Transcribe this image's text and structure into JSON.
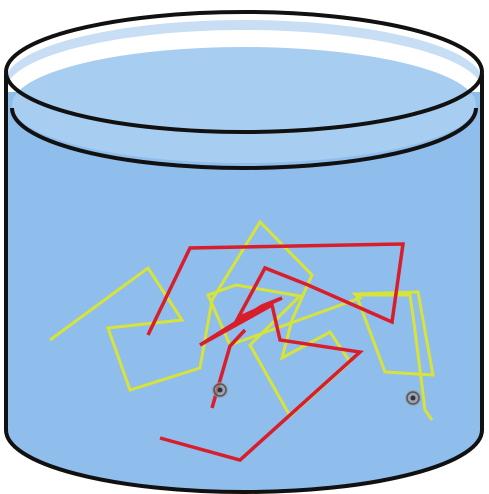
{
  "colors": {
    "background": "#ffffff",
    "water": "#8fbdec",
    "water_surface": "#a7cdf1",
    "rim_inner": "#c7def4",
    "outline": "#111111",
    "chain_yellow": "#d8e33a",
    "chain_red": "#d81e2a",
    "marker": "#8a8a8a"
  },
  "icons": {
    "container": "cylindrical-beaker",
    "liquid": "water",
    "chains": "polymer-chains",
    "markers": "chain-end-markers"
  }
}
